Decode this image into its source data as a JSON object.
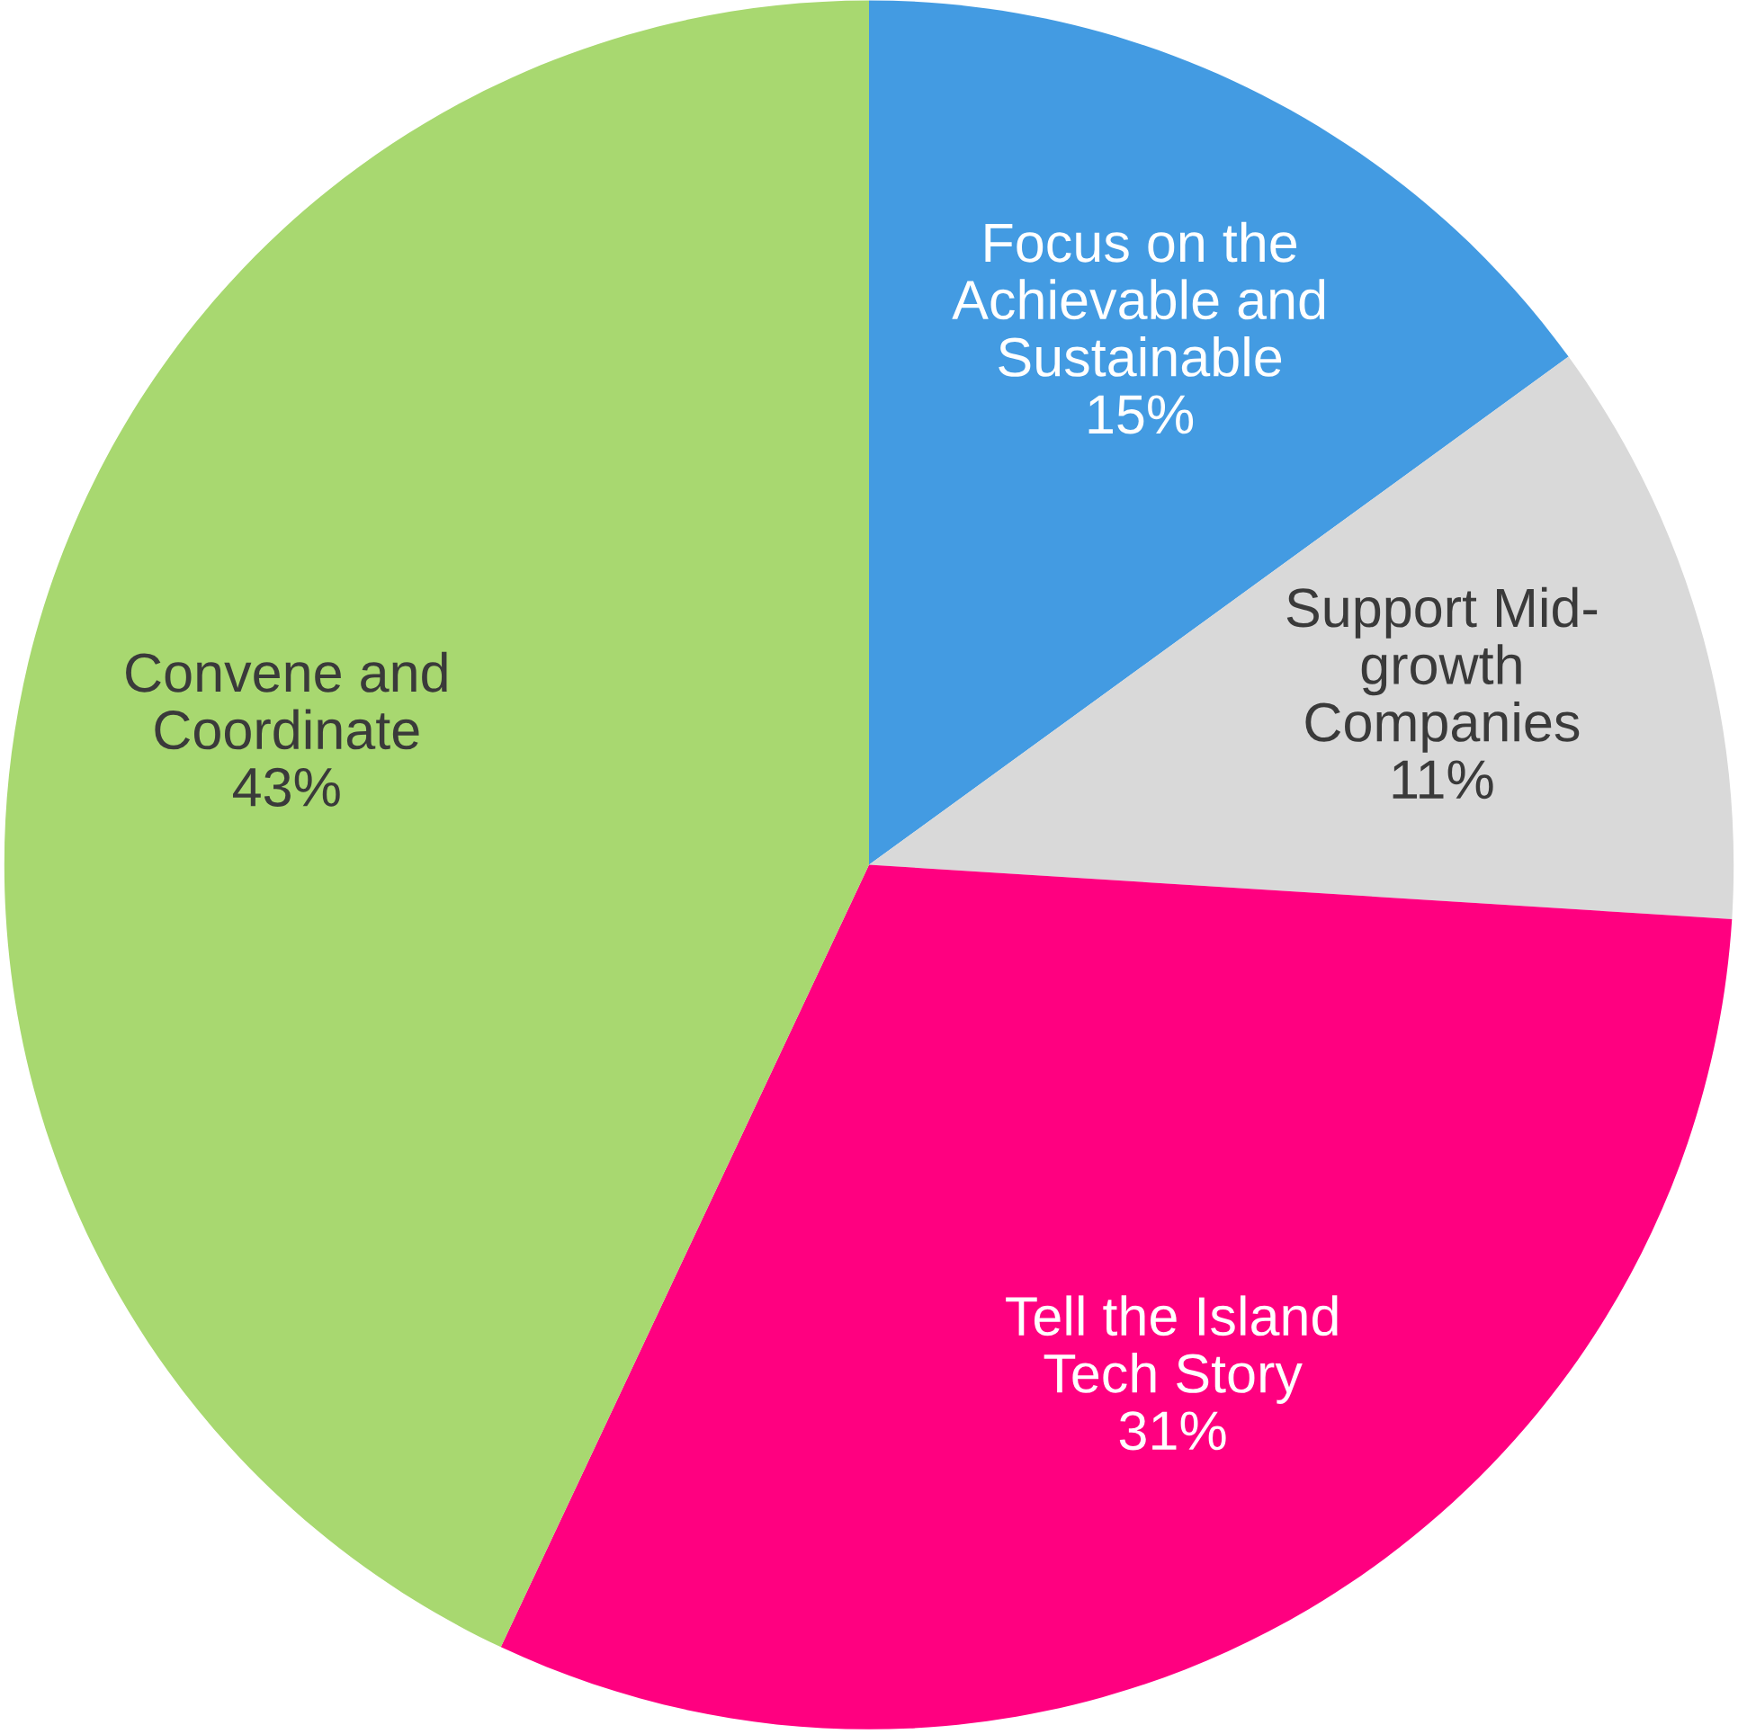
{
  "chart_data": {
    "type": "pie",
    "categories": [
      "Focus on the\nAchievable and\nSustainable",
      "Support Mid-\ngrowth\nCompanies",
      "Tell the Island\nTech Story",
      "Convene and\nCoordinate"
    ],
    "values": [
      15,
      11,
      31,
      43
    ],
    "colors": [
      "#439be2",
      "#d9d9d9",
      "#ff0080",
      "#a8d870"
    ],
    "value_labels": [
      "15%",
      "11%",
      "31%",
      "43%"
    ]
  }
}
